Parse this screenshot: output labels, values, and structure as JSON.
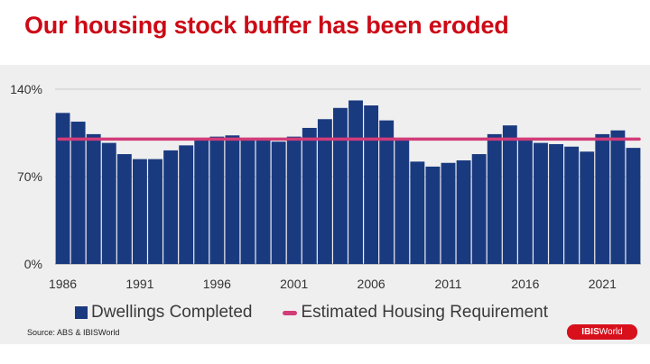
{
  "title": "Our housing stock buffer has been eroded",
  "source": "Source: ABS & IBISWorld",
  "logo": {
    "bold": "IBIS",
    "light": "World",
    "color": "#d8101c"
  },
  "colors": {
    "bars": "#1a3a80",
    "requirement_line": "#d23c78",
    "title": "#cc0a16",
    "background": "#efefef"
  },
  "chart_data": {
    "type": "bar",
    "x": [
      1986,
      1987,
      1988,
      1989,
      1990,
      1991,
      1992,
      1993,
      1994,
      1995,
      1996,
      1997,
      1998,
      1999,
      2000,
      2001,
      2002,
      2003,
      2004,
      2005,
      2006,
      2007,
      2008,
      2009,
      2010,
      2011,
      2012,
      2013,
      2014,
      2015,
      2016,
      2017,
      2018,
      2019,
      2020,
      2021,
      2022,
      2023
    ],
    "x_tick_labels": [
      "1986",
      "1991",
      "1996",
      "2001",
      "2006",
      "2011",
      "2016",
      "2021"
    ],
    "y_tick_labels": [
      "0%",
      "70%",
      "140%"
    ],
    "ylim": [
      0,
      140
    ],
    "grid": true,
    "series": [
      {
        "name": "Dwellings Completed",
        "type": "bar",
        "values": [
          121,
          114,
          104,
          97,
          88,
          84,
          84,
          91,
          95,
          99,
          102,
          103,
          101,
          99,
          98,
          102,
          109,
          116,
          125,
          131,
          127,
          115,
          100,
          82,
          78,
          81,
          83,
          88,
          104,
          111,
          101,
          97,
          96,
          94,
          90,
          104,
          107,
          93
        ]
      },
      {
        "name": "Estimated Housing Requirement",
        "type": "line",
        "values": [
          100,
          100,
          100,
          100,
          100,
          100,
          100,
          100,
          100,
          100,
          100,
          100,
          100,
          100,
          100,
          100,
          100,
          100,
          100,
          100,
          100,
          100,
          100,
          100,
          100,
          100,
          100,
          100,
          100,
          100,
          100,
          100,
          100,
          100,
          100,
          100,
          100,
          100
        ]
      }
    ],
    "legend": {
      "position": "bottom"
    }
  }
}
